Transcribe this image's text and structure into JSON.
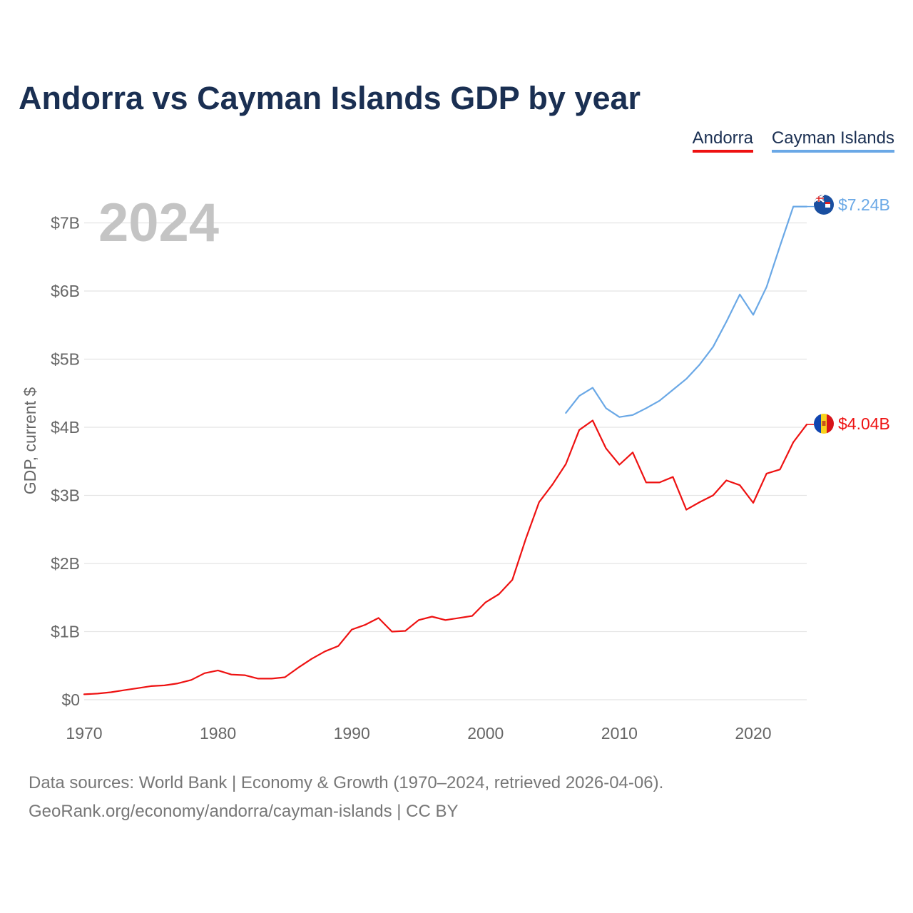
{
  "title": "Andorra vs Cayman Islands GDP by year",
  "legend": [
    {
      "name": "Andorra",
      "color": "#ee1111"
    },
    {
      "name": "Cayman Islands",
      "color": "#6aa8e6"
    }
  ],
  "year_watermark": "2024",
  "ylabel": "GDP, current $",
  "colors": {
    "andorra": "#ee1111",
    "cayman": "#6aa8e6",
    "grid": "#e4e4e4",
    "axis_text": "#666666",
    "watermark": "#c4c4c4"
  },
  "end_labels": {
    "andorra": "$4.04B",
    "cayman": "$7.24B"
  },
  "source": {
    "line1": "Data sources: World Bank | Economy & Growth (1970–2024, retrieved 2026-04-06).",
    "line2": "GeoRank.org/economy/andorra/cayman-islands | CC BY"
  },
  "chart_data": {
    "type": "line",
    "title": "Andorra vs Cayman Islands GDP by year",
    "xlabel": "",
    "ylabel": "GDP, current $",
    "xlim": [
      1970,
      2024
    ],
    "ylim": [
      0,
      7.5
    ],
    "x_ticks": [
      1970,
      1980,
      1990,
      2000,
      2010,
      2020
    ],
    "y_ticks": [
      {
        "value": 0,
        "label": "$0"
      },
      {
        "value": 1,
        "label": "$1B"
      },
      {
        "value": 2,
        "label": "$2B"
      },
      {
        "value": 3,
        "label": "$3B"
      },
      {
        "value": 4,
        "label": "$4B"
      },
      {
        "value": 5,
        "label": "$5B"
      },
      {
        "value": 6,
        "label": "$6B"
      },
      {
        "value": 7,
        "label": "$7B"
      }
    ],
    "units": "billions of current US$",
    "series": [
      {
        "name": "Andorra",
        "color": "#ee1111",
        "x": [
          1970,
          1971,
          1972,
          1973,
          1974,
          1975,
          1976,
          1977,
          1978,
          1979,
          1980,
          1981,
          1982,
          1983,
          1984,
          1985,
          1986,
          1987,
          1988,
          1989,
          1990,
          1991,
          1992,
          1993,
          1994,
          1995,
          1996,
          1997,
          1998,
          1999,
          2000,
          2001,
          2002,
          2003,
          2004,
          2005,
          2006,
          2007,
          2008,
          2009,
          2010,
          2011,
          2012,
          2013,
          2014,
          2015,
          2016,
          2017,
          2018,
          2019,
          2020,
          2021,
          2022,
          2023,
          2024
        ],
        "values": [
          0.08,
          0.09,
          0.11,
          0.14,
          0.17,
          0.2,
          0.21,
          0.24,
          0.29,
          0.39,
          0.43,
          0.37,
          0.36,
          0.31,
          0.31,
          0.33,
          0.47,
          0.6,
          0.71,
          0.79,
          1.03,
          1.1,
          1.2,
          1.0,
          1.01,
          1.17,
          1.22,
          1.17,
          1.2,
          1.23,
          1.43,
          1.55,
          1.76,
          2.36,
          2.9,
          3.16,
          3.46,
          3.96,
          4.1,
          3.69,
          3.45,
          3.63,
          3.19,
          3.19,
          3.27,
          2.79,
          2.9,
          3.0,
          3.22,
          3.15,
          2.89,
          3.32,
          3.38,
          3.78,
          4.04
        ]
      },
      {
        "name": "Cayman Islands",
        "color": "#6aa8e6",
        "x": [
          2006,
          2007,
          2008,
          2009,
          2010,
          2011,
          2012,
          2013,
          2014,
          2015,
          2016,
          2017,
          2018,
          2019,
          2020,
          2021,
          2022,
          2023,
          2024
        ],
        "values": [
          4.21,
          4.46,
          4.58,
          4.28,
          4.15,
          4.18,
          4.28,
          4.39,
          4.55,
          4.71,
          4.92,
          5.18,
          5.55,
          5.95,
          5.65,
          6.06,
          6.66,
          7.24,
          7.24
        ]
      }
    ]
  }
}
